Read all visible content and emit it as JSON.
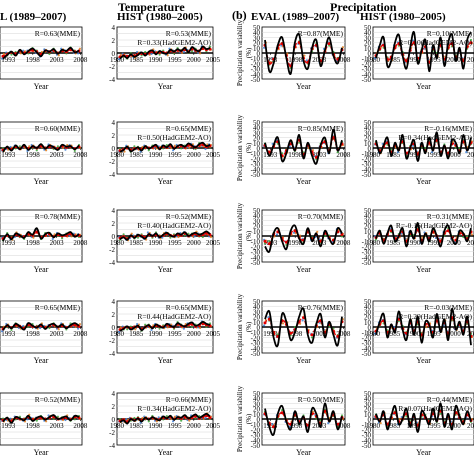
{
  "headers": {
    "temperature": "Temperature",
    "precipitation": "Precipitation",
    "panel_b": "(b)",
    "eval_left": "L (1989–2007)",
    "hist_left": "HIST (1980–2005)",
    "eval_right": "EVAL (1989–2007)",
    "hist_right": "HIST (1980–2005)"
  },
  "chart_data": {
    "type": "line",
    "xlabel": "Year",
    "precip_ylabel_line1": "Precipitation variability",
    "precip_ylabel_line2": "(%)",
    "eval_xticks": [
      "1993",
      "1998",
      "2003",
      "2008"
    ],
    "hist_xticks": [
      "1980",
      "1985",
      "1990",
      "1995",
      "2000",
      "2005"
    ],
    "temp_yticks": [
      "-4",
      "-2",
      "0",
      "2",
      "4"
    ],
    "precip_yticks": [
      "-50",
      "-40",
      "-30",
      "-20",
      "-10",
      "0",
      "10",
      "20",
      "30",
      "40",
      "50"
    ],
    "rows": [
      {
        "temp_eval": {
          "annotations": [
            "R=0.63(MME)"
          ],
          "obs": [
            -0.9,
            -0.3,
            0.2,
            -0.4,
            0.5,
            -0.2,
            0.3,
            0.7,
            0.1,
            -0.5,
            0.4,
            0.2,
            0.6,
            -0.1,
            0.5,
            0.3,
            0.8,
            0.1,
            0.4
          ],
          "mme": [
            -0.5,
            -0.2,
            0.1,
            -0.1,
            0.3,
            0.0,
            0.2,
            0.4,
            0.2,
            -0.2,
            0.3,
            0.2,
            0.4,
            0.0,
            0.3,
            0.2,
            0.5,
            0.2,
            0.3
          ]
        },
        "temp_hist": {
          "annotations": [
            "R=0.53(MME)",
            "R=0.33(HadGEM2-AO)"
          ],
          "obs": [
            -0.9,
            -0.4,
            -0.8,
            -0.2,
            -0.6,
            -0.3,
            0.1,
            -0.4,
            0.2,
            0.4,
            -0.2,
            0.3,
            0.0,
            -0.1,
            0.5,
            0.2,
            0.6,
            0.3,
            0.8,
            0.1,
            0.9,
            0.5,
            0.3,
            1.0,
            0.6,
            0.8
          ],
          "mme": [
            -0.6,
            -0.4,
            -0.5,
            -0.3,
            -0.4,
            -0.2,
            -0.1,
            -0.2,
            0.0,
            0.2,
            0.0,
            0.1,
            0.1,
            0.0,
            0.3,
            0.2,
            0.4,
            0.3,
            0.5,
            0.2,
            0.6,
            0.4,
            0.3,
            0.7,
            0.5,
            0.6
          ]
        },
        "precip_eval": {
          "annotations": [
            "R=0.87(MME)"
          ],
          "obs": [
            25,
            -35,
            -20,
            15,
            30,
            -10,
            -40,
            20,
            35,
            -15,
            -30,
            10,
            25,
            -25,
            5,
            30,
            -5,
            -20,
            10
          ],
          "mme": [
            15,
            -20,
            -12,
            10,
            18,
            -5,
            -25,
            12,
            20,
            -10,
            -18,
            8,
            15,
            -15,
            3,
            18,
            -3,
            -12,
            6
          ]
        },
        "precip_hist": {
          "annotations": [
            "R=0.10(MME)",
            "R=0.10(HadGEM2-AO)"
          ],
          "obs": [
            -10,
            15,
            30,
            -25,
            -15,
            20,
            35,
            -5,
            -30,
            10,
            40,
            -20,
            5,
            25,
            -35,
            15,
            -10,
            30,
            -25,
            20,
            35,
            -15,
            10,
            -30,
            25,
            40
          ],
          "mme": [
            -5,
            8,
            15,
            -12,
            -8,
            10,
            18,
            -3,
            -15,
            5,
            20,
            -10,
            3,
            12,
            -18,
            8,
            -5,
            15,
            -12,
            10,
            18,
            -8,
            5,
            -15,
            12,
            20
          ]
        }
      },
      {
        "temp_eval": {
          "annotations": [
            "R=0.60(MME)"
          ],
          "obs": [
            -0.6,
            0.2,
            -0.4,
            0.4,
            -0.2,
            0.5,
            -0.3,
            0.3,
            0.0,
            0.6,
            -0.1,
            0.4,
            0.1,
            -0.3,
            0.5,
            0.2,
            0.3,
            -0.2,
            0.4
          ],
          "mme": [
            -0.3,
            0.1,
            -0.2,
            0.2,
            -0.1,
            0.3,
            -0.1,
            0.2,
            0.0,
            0.3,
            0.0,
            0.2,
            0.1,
            -0.1,
            0.3,
            0.1,
            0.2,
            -0.1,
            0.2
          ]
        },
        "temp_hist": {
          "annotations": [
            "R=0.65(MME)",
            "R=0.50(HadGEM2-AO)"
          ],
          "obs": [
            -0.6,
            -0.3,
            0.2,
            -0.5,
            -0.2,
            0.1,
            -0.4,
            0.3,
            -0.1,
            0.2,
            0.5,
            -0.2,
            0.4,
            0.1,
            0.6,
            -0.1,
            0.3,
            0.5,
            0.2,
            0.7,
            0.4,
            0.1,
            0.6,
            0.8,
            0.3,
            0.5
          ],
          "mme": [
            -0.4,
            -0.2,
            0.0,
            -0.3,
            -0.1,
            0.0,
            -0.2,
            0.1,
            0.0,
            0.1,
            0.3,
            -0.1,
            0.2,
            0.1,
            0.3,
            0.0,
            0.2,
            0.3,
            0.1,
            0.4,
            0.3,
            0.1,
            0.4,
            0.5,
            0.2,
            0.3
          ]
        },
        "precip_eval": {
          "annotations": [
            "R=0.85(MME)"
          ],
          "obs": [
            10,
            -15,
            5,
            20,
            -25,
            -10,
            15,
            -5,
            25,
            -20,
            10,
            -15,
            -30,
            5,
            20,
            -10,
            35,
            -5,
            15
          ],
          "mme": [
            5,
            -8,
            3,
            12,
            -15,
            -5,
            8,
            -3,
            15,
            -12,
            5,
            -8,
            -18,
            3,
            12,
            -5,
            20,
            -3,
            8
          ]
        },
        "precip_hist": {
          "annotations": [
            "R=-0.16(MME)",
            "R=0.34(HadGEM2-AO)"
          ],
          "obs": [
            15,
            -10,
            5,
            20,
            -15,
            10,
            -5,
            25,
            -20,
            0,
            15,
            -25,
            10,
            -10,
            20,
            -5,
            30,
            -15,
            5,
            -20,
            15,
            10,
            -10,
            25,
            -5,
            20
          ],
          "mme": [
            8,
            -5,
            3,
            10,
            -8,
            5,
            -3,
            12,
            -10,
            0,
            8,
            -12,
            5,
            -5,
            10,
            -3,
            15,
            -8,
            3,
            -10,
            8,
            5,
            -5,
            12,
            -3,
            10
          ]
        }
      },
      {
        "temp_eval": {
          "annotations": [
            "R=0.78(MME)"
          ],
          "obs": [
            -0.8,
            0.3,
            -0.5,
            0.4,
            0.1,
            -0.3,
            0.6,
            0.2,
            1.2,
            -0.4,
            0.3,
            0.5,
            -0.2,
            0.4,
            0.1,
            0.3,
            0.6,
            -0.1,
            0.3
          ],
          "mme": [
            -0.4,
            0.1,
            -0.3,
            0.2,
            0.0,
            -0.1,
            0.3,
            0.1,
            0.6,
            -0.2,
            0.1,
            0.3,
            -0.1,
            0.2,
            0.0,
            0.1,
            0.3,
            0.0,
            0.1
          ]
        },
        "temp_hist": {
          "annotations": [
            "R=0.52(MME)",
            "R=0.40(HadGEM2-AO)"
          ],
          "obs": [
            -0.5,
            -0.2,
            -0.6,
            0.1,
            -0.3,
            0.2,
            -0.1,
            -0.4,
            0.3,
            0.0,
            0.4,
            -0.2,
            0.2,
            0.5,
            0.1,
            -0.1,
            0.4,
            0.2,
            0.6,
            0.0,
            0.3,
            0.5,
            0.2,
            0.4,
            0.7,
            0.3
          ],
          "mme": [
            -0.3,
            -0.1,
            -0.4,
            0.0,
            -0.2,
            0.1,
            0.0,
            -0.2,
            0.2,
            0.0,
            0.2,
            -0.1,
            0.1,
            0.3,
            0.1,
            0.0,
            0.2,
            0.1,
            0.4,
            0.0,
            0.2,
            0.3,
            0.1,
            0.2,
            0.4,
            0.2
          ]
        },
        "precip_eval": {
          "annotations": [
            "R=0.70(MME)"
          ],
          "obs": [
            -20,
            -30,
            5,
            15,
            -10,
            -25,
            10,
            20,
            -5,
            -15,
            15,
            -10,
            5,
            -20,
            10,
            -5,
            -15,
            15,
            5
          ],
          "mme": [
            -10,
            -15,
            3,
            8,
            -5,
            -12,
            5,
            10,
            -3,
            -8,
            8,
            -5,
            3,
            -10,
            5,
            -3,
            -8,
            8,
            3
          ]
        },
        "precip_hist": {
          "annotations": [
            "R=0.31(MME)",
            "R=-0.16(HadGEM2-AO)"
          ],
          "obs": [
            -5,
            10,
            -15,
            5,
            20,
            -10,
            0,
            15,
            -20,
            10,
            -5,
            25,
            -15,
            5,
            -10,
            15,
            0,
            -20,
            10,
            20,
            -5,
            -15,
            10,
            5,
            -10,
            15
          ],
          "mme": [
            -3,
            5,
            -8,
            3,
            10,
            -5,
            0,
            8,
            -10,
            5,
            -3,
            12,
            -8,
            3,
            -5,
            8,
            0,
            -10,
            5,
            10,
            -3,
            -8,
            5,
            3,
            -5,
            8
          ]
        }
      },
      {
        "temp_eval": {
          "annotations": [
            "R=0.65(MME)"
          ],
          "obs": [
            -0.5,
            0.3,
            -0.2,
            0.5,
            0.1,
            -0.4,
            0.6,
            0.2,
            -0.1,
            0.4,
            -0.3,
            0.3,
            0.5,
            0.0,
            0.4,
            -0.2,
            0.3,
            0.6,
            0.2
          ],
          "mme": [
            -0.3,
            0.2,
            -0.1,
            0.3,
            0.1,
            -0.2,
            0.3,
            0.1,
            0.0,
            0.2,
            -0.1,
            0.2,
            0.3,
            0.0,
            0.2,
            -0.1,
            0.2,
            0.3,
            0.1
          ]
        },
        "temp_hist": {
          "annotations": [
            "R=0.65(MME)",
            "R=0.44(HadGEM2-AO)"
          ],
          "obs": [
            -0.6,
            -0.3,
            0.1,
            -0.4,
            -0.1,
            0.2,
            -0.5,
            0.0,
            0.3,
            -0.2,
            0.4,
            0.1,
            -0.1,
            0.5,
            0.2,
            0.0,
            0.6,
            0.3,
            0.1,
            0.5,
            0.7,
            0.2,
            0.4,
            0.8,
            0.5,
            0.3
          ],
          "mme": [
            -0.4,
            -0.2,
            0.0,
            -0.2,
            0.0,
            0.1,
            -0.3,
            0.0,
            0.2,
            -0.1,
            0.2,
            0.1,
            0.0,
            0.3,
            0.1,
            0.0,
            0.4,
            0.2,
            0.1,
            0.3,
            0.4,
            0.1,
            0.2,
            0.5,
            0.3,
            0.2
          ]
        },
        "precip_eval": {
          "annotations": [
            "R=0.76(MME)"
          ],
          "obs": [
            15,
            30,
            -20,
            -35,
            25,
            10,
            -25,
            -10,
            20,
            35,
            -15,
            -30,
            5,
            25,
            -20,
            10,
            -15,
            -35,
            20
          ],
          "mme": [
            8,
            15,
            -10,
            -18,
            12,
            5,
            -12,
            -5,
            10,
            18,
            -8,
            -15,
            3,
            12,
            -10,
            5,
            -8,
            -18,
            10
          ]
        },
        "precip_hist": {
          "annotations": [
            "R=-0.03(MME)",
            "R=0.29(HadGEM2-AO)"
          ],
          "obs": [
            -15,
            10,
            25,
            -20,
            5,
            -10,
            30,
            -5,
            -25,
            15,
            -15,
            20,
            -30,
            10,
            5,
            -20,
            25,
            -10,
            15,
            -25,
            35,
            -5,
            10,
            -15,
            20,
            -35
          ],
          "mme": [
            -8,
            5,
            12,
            -10,
            3,
            -5,
            15,
            -3,
            -12,
            8,
            -8,
            10,
            -15,
            5,
            3,
            -10,
            12,
            -5,
            8,
            -12,
            18,
            -3,
            5,
            -8,
            10,
            -18
          ]
        }
      },
      {
        "temp_eval": {
          "annotations": [
            "R=0.52(MME)"
          ],
          "obs": [
            -0.4,
            0.2,
            -0.6,
            0.3,
            0.1,
            -0.2,
            0.5,
            -0.3,
            0.2,
            0.4,
            -0.1,
            0.3,
            0.6,
            0.0,
            0.2,
            0.4,
            -0.2,
            0.5,
            0.3
          ],
          "mme": [
            -0.2,
            0.1,
            -0.3,
            0.2,
            0.0,
            -0.1,
            0.3,
            -0.1,
            0.1,
            0.2,
            0.0,
            0.2,
            0.3,
            0.0,
            0.1,
            0.2,
            -0.1,
            0.3,
            0.2
          ]
        },
        "temp_hist": {
          "annotations": [
            "R=0.66(MME)",
            "R=0.34(HadGEM2-AO)"
          ],
          "obs": [
            -0.5,
            -0.2,
            -0.7,
            0.0,
            -0.3,
            0.1,
            -0.4,
            0.2,
            -0.1,
            0.3,
            0.0,
            -0.2,
            0.4,
            0.1,
            0.5,
            -0.1,
            0.3,
            0.2,
            0.6,
            0.1,
            0.4,
            0.7,
            0.2,
            0.5,
            0.8,
            0.4
          ],
          "mme": [
            -0.3,
            -0.1,
            -0.4,
            0.0,
            -0.2,
            0.1,
            -0.2,
            0.1,
            0.0,
            0.2,
            0.0,
            -0.1,
            0.2,
            0.1,
            0.3,
            0.0,
            0.2,
            0.1,
            0.3,
            0.1,
            0.2,
            0.4,
            0.1,
            0.3,
            0.5,
            0.2
          ]
        },
        "precip_eval": {
          "annotations": [
            "R=0.50(MME)"
          ],
          "obs": [
            20,
            -15,
            -30,
            10,
            25,
            -5,
            -20,
            15,
            -10,
            5,
            -25,
            20,
            10,
            -15,
            30,
            -5,
            15,
            -20,
            5
          ],
          "mme": [
            10,
            -8,
            -15,
            5,
            12,
            -3,
            -10,
            8,
            -5,
            3,
            -12,
            10,
            5,
            -8,
            15,
            -3,
            8,
            -10,
            3
          ]
        },
        "precip_hist": {
          "annotations": [
            "R=0.44(MME)",
            "R=0.07(HadGEM2-AO)"
          ],
          "obs": [
            10,
            -5,
            15,
            -20,
            5,
            25,
            -10,
            0,
            20,
            -15,
            10,
            -25,
            15,
            5,
            -10,
            20,
            -5,
            30,
            -15,
            10,
            -20,
            25,
            5,
            -10,
            15,
            -5
          ],
          "mme": [
            5,
            -3,
            8,
            -10,
            3,
            12,
            -5,
            0,
            10,
            -8,
            5,
            -12,
            8,
            3,
            -5,
            10,
            -3,
            15,
            -8,
            5,
            -10,
            12,
            3,
            -5,
            8,
            -3
          ]
        }
      }
    ],
    "colors": {
      "obs": "#000000",
      "mme": "#e00000",
      "model_a": "#3b7fd4",
      "model_b": "#3aa43a",
      "model_c": "#e07b1a",
      "zero_line": "#000000"
    }
  }
}
